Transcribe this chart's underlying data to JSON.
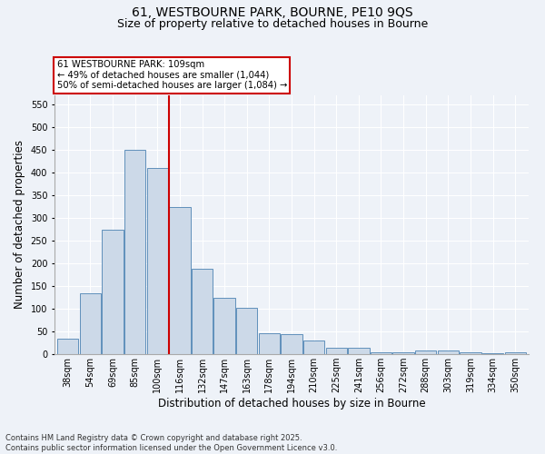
{
  "title_line1": "61, WESTBOURNE PARK, BOURNE, PE10 9QS",
  "title_line2": "Size of property relative to detached houses in Bourne",
  "xlabel": "Distribution of detached houses by size in Bourne",
  "ylabel": "Number of detached properties",
  "categories": [
    "38sqm",
    "54sqm",
    "69sqm",
    "85sqm",
    "100sqm",
    "116sqm",
    "132sqm",
    "147sqm",
    "163sqm",
    "178sqm",
    "194sqm",
    "210sqm",
    "225sqm",
    "241sqm",
    "256sqm",
    "272sqm",
    "288sqm",
    "303sqm",
    "319sqm",
    "334sqm",
    "350sqm"
  ],
  "values": [
    35,
    135,
    275,
    450,
    410,
    325,
    188,
    125,
    103,
    46,
    45,
    30,
    15,
    15,
    5,
    5,
    8,
    8,
    4,
    3,
    4
  ],
  "bar_color": "#ccd9e8",
  "bar_edge_color": "#6090bb",
  "red_line_x": 4.5,
  "annotation_text": "61 WESTBOURNE PARK: 109sqm\n← 49% of detached houses are smaller (1,044)\n50% of semi-detached houses are larger (1,084) →",
  "annotation_box_color": "#ffffff",
  "annotation_box_edge": "#cc0000",
  "red_line_color": "#cc0000",
  "ylim": [
    0,
    570
  ],
  "yticks": [
    0,
    50,
    100,
    150,
    200,
    250,
    300,
    350,
    400,
    450,
    500,
    550
  ],
  "footer_line1": "Contains HM Land Registry data © Crown copyright and database right 2025.",
  "footer_line2": "Contains public sector information licensed under the Open Government Licence v3.0.",
  "bg_color": "#eef2f8",
  "title_fontsize": 10,
  "subtitle_fontsize": 9,
  "label_fontsize": 8.5,
  "tick_fontsize": 7,
  "footer_fontsize": 6
}
